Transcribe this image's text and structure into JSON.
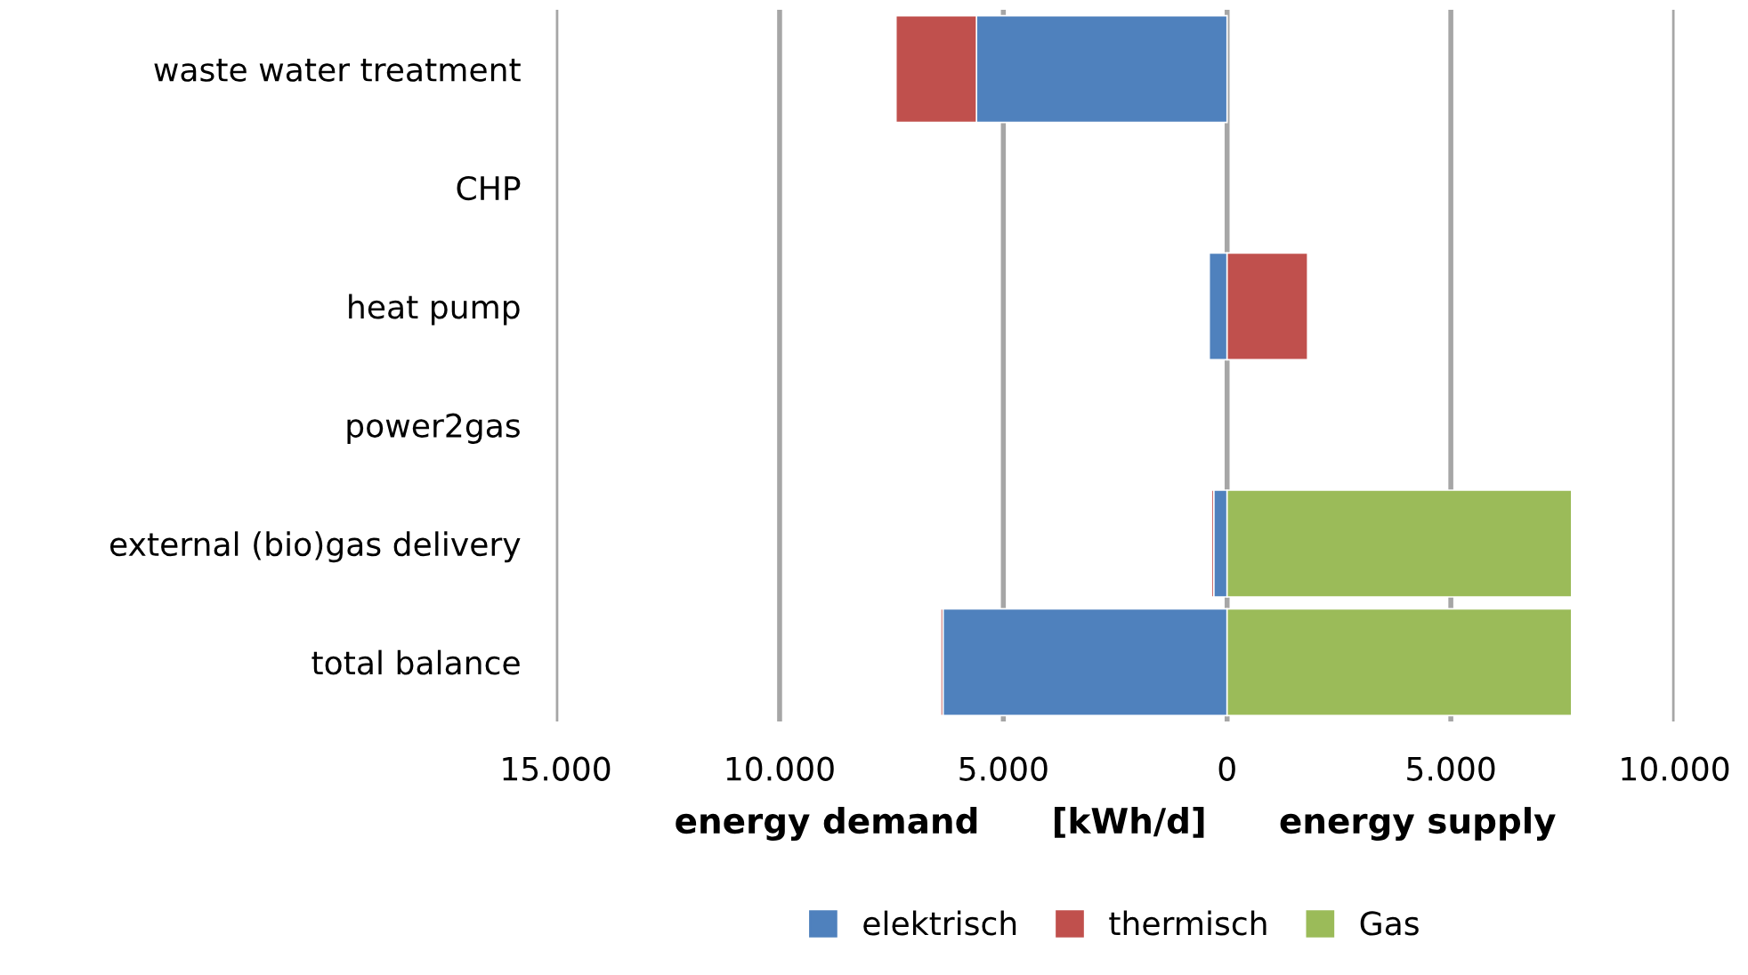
{
  "chart_data": {
    "type": "bar",
    "orientation": "horizontal",
    "stacked": true,
    "xlabel": "energy demand      [kWh/d]      energy supply",
    "categories": [
      "waste water treatment",
      "CHP",
      "heat pump",
      "power2gas",
      "external (bio)gas delivery",
      "total balance"
    ],
    "series": [
      {
        "name": "elektrisch",
        "color": "#4f81bd",
        "values": [
          -5600,
          null,
          -400,
          null,
          -300,
          -6350
        ]
      },
      {
        "name": "thermisch",
        "color": "#c0504d",
        "values": [
          -1800,
          null,
          1800,
          null,
          -50,
          -50
        ]
      },
      {
        "name": "Gas",
        "color": "#9bbb59",
        "values": [
          null,
          null,
          null,
          null,
          7700,
          7700
        ]
      }
    ],
    "xlim": [
      -15000,
      10000
    ],
    "xticks": [
      {
        "value": -15000,
        "label": "15.000"
      },
      {
        "value": -10000,
        "label": "10.000"
      },
      {
        "value": -5000,
        "label": "5.000"
      },
      0,
      {
        "value": 5000,
        "label": "5.000"
      },
      {
        "value": 10000,
        "label": "10.000"
      }
    ],
    "grid": "x",
    "legend": "bottom"
  }
}
